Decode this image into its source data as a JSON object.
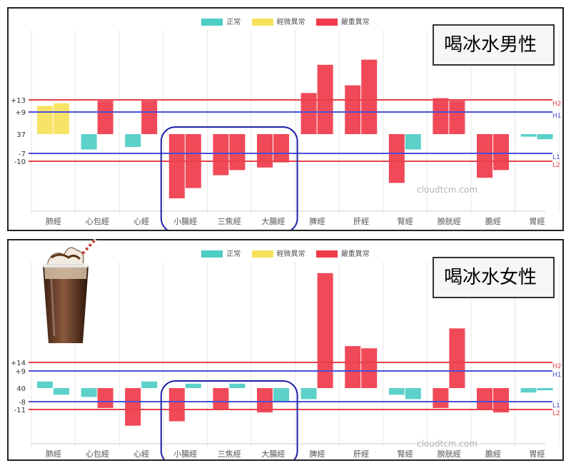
{
  "legend": [
    {
      "label": "正常",
      "color": "#4ecdc4"
    },
    {
      "label": "輕微異常",
      "color": "#f7e15a"
    },
    {
      "label": "嚴重異常",
      "color": "#ef3a4a"
    }
  ],
  "watermark": "cloudtcm.com",
  "ref_labels": {
    "h2": "H2",
    "h1": "H1",
    "l1": "L1",
    "l2": "L2"
  },
  "colors": {
    "normal": "#4ecdc4",
    "mild": "#f7e15a",
    "severe": "#ef3a4a",
    "h_line": "#e8414b",
    "m_line": "#4a4fd8",
    "highlight": "#1f1fa8"
  },
  "drink_icon": "iced-coffee-icon",
  "chart_data": [
    {
      "type": "bar",
      "title": "喝冰水男性",
      "categories": [
        "肺經",
        "心包經",
        "心經",
        "小腸經",
        "三焦經",
        "大腸經",
        "脾經",
        "肝經",
        "腎經",
        "膀胱經",
        "膽經",
        "胃經"
      ],
      "y_ticks": {
        "h2": "+13",
        "h1": "+9",
        "base": "37",
        "l1": "-7",
        "l2": "-10"
      },
      "highlight_categories": [
        "小腸經",
        "三焦經",
        "大腸經"
      ],
      "series": [
        {
          "values": [
            11,
            -6,
            -5,
            -25,
            -16,
            -13,
            16,
            19,
            -19,
            14,
            -17,
            -1
          ],
          "colors": [
            "mild",
            "normal",
            "normal",
            "severe",
            "severe",
            "severe",
            "severe",
            "severe",
            "severe",
            "severe",
            "severe",
            "normal"
          ]
        },
        {
          "values": [
            12,
            13,
            13,
            -21,
            -14,
            -11,
            27,
            29,
            -6,
            13,
            -14,
            -2
          ],
          "colors": [
            "mild",
            "severe",
            "severe",
            "severe",
            "severe",
            "severe",
            "severe",
            "severe",
            "normal",
            "severe",
            "severe",
            "normal"
          ]
        }
      ]
    },
    {
      "type": "bar",
      "title": "喝冰水女性",
      "categories": [
        "肺經",
        "心包經",
        "心經",
        "小腸經",
        "三焦經",
        "大腸經",
        "脾經",
        "肝經",
        "腎經",
        "膀胱經",
        "膽經",
        "胃經"
      ],
      "y_ticks": {
        "h2": "+14",
        "h1": "+9",
        "base": "40",
        "l1": "-8",
        "l2": "-11"
      },
      "highlight_categories": [
        "小腸經",
        "三焦經",
        "大腸經"
      ],
      "series": [
        {
          "values": [
            3,
            -4,
            -17,
            -15,
            -10,
            -11,
            -5,
            19,
            -3,
            -9,
            -10,
            -2
          ],
          "colors": [
            "normal",
            "normal",
            "severe",
            "severe",
            "severe",
            "severe",
            "normal",
            "severe",
            "normal",
            "severe",
            "severe",
            "normal"
          ]
        },
        {
          "values": [
            -3,
            -9,
            3,
            2,
            2,
            -6,
            52,
            18,
            -5,
            27,
            -11,
            -1
          ],
          "colors": [
            "normal",
            "severe",
            "normal",
            "normal",
            "normal",
            "normal",
            "severe",
            "severe",
            "normal",
            "severe",
            "severe",
            "normal"
          ]
        }
      ]
    }
  ]
}
